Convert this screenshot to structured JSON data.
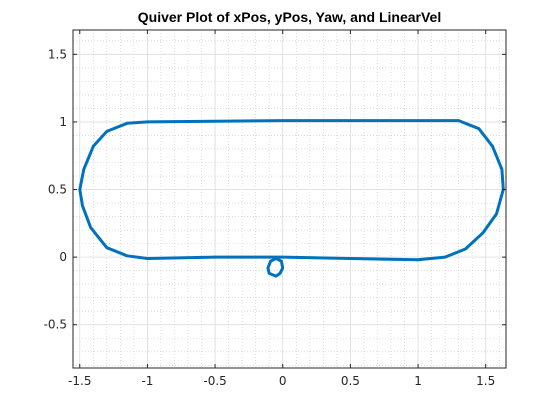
{
  "chart_data": {
    "type": "quiver",
    "title": "Quiver Plot of xPos, yPos, Yaw, and LinearVel",
    "xlabel": "",
    "ylabel": "",
    "xlim": [
      -1.55,
      1.65
    ],
    "ylim": [
      -0.82,
      1.68
    ],
    "xticks": [
      -1.5,
      -1,
      -0.5,
      0,
      0.5,
      1,
      1.5
    ],
    "xtick_labels": [
      "-1.5",
      "-1",
      "-0.5",
      "0",
      "0.5",
      "1",
      "1.5"
    ],
    "yticks": [
      -0.5,
      0,
      0.5,
      1,
      1.5
    ],
    "ytick_labels": [
      "-0.5",
      "0",
      "0.5",
      "1",
      "1.5"
    ],
    "grid": true,
    "minor_grid": true,
    "color": "#0072bd",
    "series": [
      {
        "values": {
          "x": [
            -1.15,
            -1.0,
            -0.5,
            0.0,
            0.5,
            1.0,
            1.3,
            1.45,
            1.55,
            1.62,
            1.63,
            1.58,
            1.48,
            1.35,
            1.2,
            1.0,
            0.5,
            0.0,
            -0.5,
            -1.0,
            -1.15,
            -1.3,
            -1.42,
            -1.48,
            -1.5,
            -1.47,
            -1.4,
            -1.3,
            -1.15
          ],
          "y": [
            0.99,
            1.0,
            1.005,
            1.01,
            1.01,
            1.01,
            1.01,
            0.95,
            0.82,
            0.65,
            0.5,
            0.32,
            0.18,
            0.06,
            0.0,
            -0.02,
            -0.01,
            0.0,
            0.0,
            -0.01,
            0.01,
            0.07,
            0.22,
            0.38,
            0.5,
            0.65,
            0.82,
            0.93,
            0.99
          ]
        }
      },
      {
        "values": {
          "x": [
            -0.05,
            -0.02,
            0.0,
            -0.01,
            -0.05,
            -0.09,
            -0.11,
            -0.1,
            -0.05
          ],
          "y": [
            -0.14,
            -0.12,
            -0.08,
            -0.03,
            -0.01,
            -0.03,
            -0.08,
            -0.12,
            -0.14
          ]
        }
      }
    ]
  }
}
